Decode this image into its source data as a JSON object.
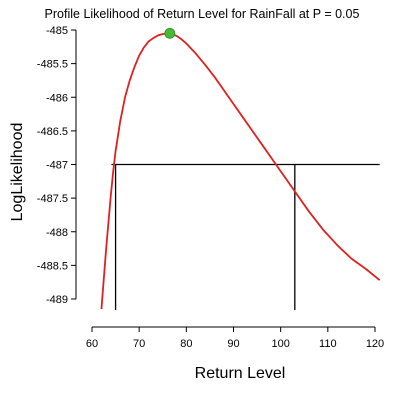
{
  "chart_data": {
    "type": "line",
    "title": "Profile Likelihood of Return Level for RainFall at P =  0.05",
    "xlabel": "Return Level",
    "ylabel": "LogLikelihood",
    "xlim": [
      60,
      122
    ],
    "ylim": [
      -489.2,
      -484.9
    ],
    "xticks": [
      60,
      70,
      80,
      90,
      100,
      110,
      120
    ],
    "yticks": [
      -485,
      -485.5,
      -486,
      -486.5,
      -487,
      -487.5,
      -488,
      -488.5,
      -489
    ],
    "ytick_labels": [
      "-485",
      "-485.5",
      "-486",
      "-486.5",
      "-487",
      "-487.5",
      "-488",
      "-488.5",
      "-489"
    ],
    "grid": false,
    "legend": "none",
    "colors": {
      "curve": "#e02020",
      "max_point": "#44bb33",
      "reference": "#000000"
    },
    "series": [
      {
        "x": [
          62,
          62.5,
          63,
          63.5,
          64,
          64.5,
          65,
          66,
          67,
          68,
          69,
          70,
          71,
          72,
          73,
          74,
          75,
          76,
          76.5,
          77,
          78,
          79,
          80,
          82,
          84,
          86,
          88,
          90,
          92,
          94,
          96,
          98,
          100,
          103,
          106,
          109,
          112,
          115,
          118,
          121
        ],
        "y": [
          -489.15,
          -488.7,
          -488.25,
          -487.85,
          -487.45,
          -487.1,
          -486.8,
          -486.35,
          -486.0,
          -485.75,
          -485.55,
          -485.38,
          -485.26,
          -485.17,
          -485.12,
          -485.08,
          -485.06,
          -485.05,
          -485.05,
          -485.06,
          -485.09,
          -485.14,
          -485.2,
          -485.35,
          -485.52,
          -485.7,
          -485.9,
          -486.1,
          -486.3,
          -486.5,
          -486.7,
          -486.9,
          -487.1,
          -487.4,
          -487.7,
          -487.97,
          -488.2,
          -488.4,
          -488.55,
          -488.72
        ]
      }
    ],
    "max_point": {
      "x": 76.5,
      "y": -485.05
    },
    "reference_line": {
      "y": -487.0,
      "x_from": 62,
      "x_to": 121
    },
    "interval": {
      "lower": 65,
      "upper": 103
    }
  }
}
